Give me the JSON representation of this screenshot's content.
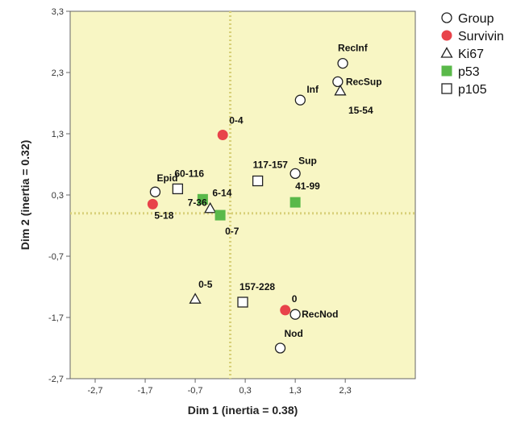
{
  "chart_data": {
    "type": "scatter",
    "xlabel": "Dim 1 (inertia = 0.38)",
    "ylabel": "Dim 2 (inertia = 0.32)",
    "xlim": [
      -3.2,
      3.7
    ],
    "ylim": [
      -2.7,
      3.3
    ],
    "x_ticks": [
      -2.7,
      -1.7,
      -0.7,
      0.3,
      1.3,
      2.3
    ],
    "y_ticks": [
      -2.7,
      -1.7,
      -0.7,
      0.3,
      1.3,
      2.3,
      3.3
    ],
    "reference_lines": {
      "x": 0.0,
      "y": 0.0,
      "style": "dotted"
    },
    "background_color": "#f8f6c4",
    "legend_position": "right",
    "series": [
      {
        "name": "Group",
        "marker": "circle-open",
        "color": "#000000",
        "points": [
          {
            "label": "RecInf",
            "x": 2.25,
            "y": 2.45
          },
          {
            "label": "RecSup",
            "x": 2.15,
            "y": 2.15
          },
          {
            "label": "Inf",
            "x": 1.4,
            "y": 1.85
          },
          {
            "label": "Sup",
            "x": 1.3,
            "y": 0.65
          },
          {
            "label": "Epid",
            "x": -1.5,
            "y": 0.35
          },
          {
            "label": "RecNod",
            "x": 1.3,
            "y": -1.65
          },
          {
            "label": "Nod",
            "x": 1.0,
            "y": -2.2
          }
        ]
      },
      {
        "name": "Survivin",
        "marker": "circle-filled",
        "color": "#e8434a",
        "points": [
          {
            "label": "0-4",
            "x": -0.15,
            "y": 1.28
          },
          {
            "label": "5-18",
            "x": -1.55,
            "y": 0.15
          },
          {
            "label": "0",
            "x": 1.1,
            "y": -1.58
          }
        ]
      },
      {
        "name": "Ki67",
        "marker": "triangle-open",
        "color": "#000000",
        "points": [
          {
            "label": "15-54",
            "x": 2.2,
            "y": 2.0
          },
          {
            "label": "7-36",
            "x": -0.4,
            "y": 0.08
          },
          {
            "label": "0-5",
            "x": -0.7,
            "y": -1.4
          }
        ]
      },
      {
        "name": "p53",
        "marker": "square-filled",
        "color": "#5ab94a",
        "points": [
          {
            "label": "6-14",
            "x": -0.55,
            "y": 0.23
          },
          {
            "label": "41-99",
            "x": 1.3,
            "y": 0.18
          },
          {
            "label": "0-7",
            "x": -0.2,
            "y": -0.03
          }
        ]
      },
      {
        "name": "p105",
        "marker": "square-open",
        "color": "#000000",
        "points": [
          {
            "label": "60-116",
            "x": -1.05,
            "y": 0.4
          },
          {
            "label": "117-157",
            "x": 0.55,
            "y": 0.53
          },
          {
            "label": "157-228",
            "x": 0.25,
            "y": -1.45
          }
        ]
      }
    ]
  }
}
